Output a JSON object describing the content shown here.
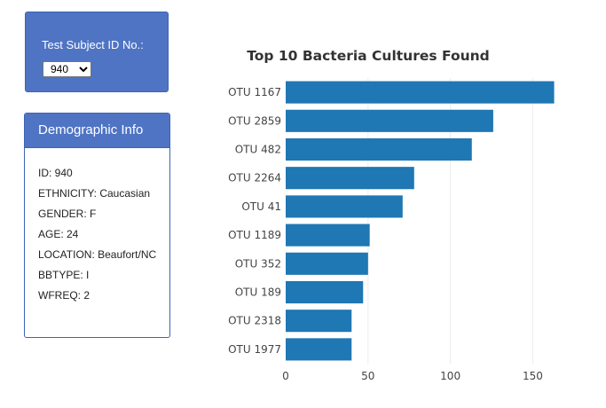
{
  "selector": {
    "label": "Test Subject ID No.:",
    "selected": "940"
  },
  "demographics": {
    "title": "Demographic Info",
    "items": [
      "ID: 940",
      "ETHNICITY: Caucasian",
      "GENDER: F",
      "AGE: 24",
      "LOCATION: Beaufort/NC",
      "BBTYPE: I",
      "WFREQ: 2"
    ]
  },
  "colors": {
    "panel": "#4f74c4",
    "bar": "#1f77b4"
  },
  "chart_data": {
    "type": "bar",
    "orientation": "horizontal",
    "title": "Top 10 Bacteria Cultures Found",
    "xlabel": "",
    "ylabel": "",
    "categories": [
      "OTU 1167",
      "OTU 2859",
      "OTU 482",
      "OTU 2264",
      "OTU 41",
      "OTU 1189",
      "OTU 352",
      "OTU 189",
      "OTU 2318",
      "OTU 1977"
    ],
    "values": [
      163,
      126,
      113,
      78,
      71,
      51,
      50,
      47,
      40,
      40
    ],
    "xlim": [
      0,
      167
    ],
    "xticks": [
      0,
      50,
      100,
      150
    ],
    "grid": "vertical"
  }
}
